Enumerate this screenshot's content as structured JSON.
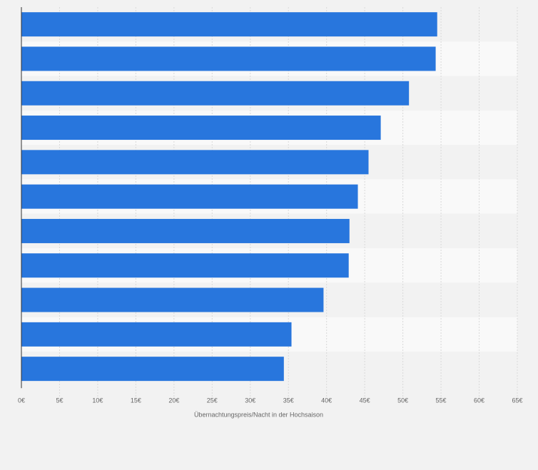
{
  "chart_data": {
    "type": "bar",
    "orientation": "horizontal",
    "title": "",
    "xlabel": "Übernachtungspreis/Nacht in der Hochsaison",
    "ylabel": "",
    "categories": [
      "",
      "",
      "",
      "",
      "",
      "",
      "",
      "",
      "",
      "",
      ""
    ],
    "values": [
      54.5,
      54.3,
      50.8,
      47.1,
      45.5,
      44.1,
      43.0,
      42.9,
      39.6,
      35.4,
      34.4
    ],
    "xlim": [
      0,
      65
    ],
    "ticks": [
      0,
      5,
      10,
      15,
      20,
      25,
      30,
      35,
      40,
      45,
      50,
      55,
      60,
      65
    ],
    "tick_labels": [
      "0€",
      "5€",
      "10€",
      "15€",
      "20€",
      "25€",
      "30€",
      "35€",
      "40€",
      "45€",
      "50€",
      "55€",
      "60€",
      "65€"
    ],
    "grid": true,
    "legend": "none"
  },
  "colors": {
    "bar": "#2876dd",
    "band_light": "#f9f9f9",
    "band_dark": "#f2f2f2",
    "grid": "#d9d9d9",
    "axis": "#333333",
    "text": "#666666"
  }
}
